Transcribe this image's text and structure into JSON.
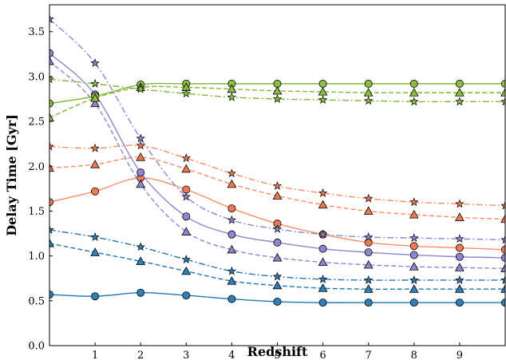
{
  "chart_data": {
    "type": "line",
    "title": "",
    "xlabel": "Redshift",
    "ylabel": "Delay Time [Gyr]",
    "xlim": [
      0,
      10
    ],
    "ylim": [
      0,
      3.8
    ],
    "xticks": [
      "1",
      "2",
      "3",
      "4",
      "5",
      "6",
      "7",
      "8",
      "9"
    ],
    "yticks": [
      "0.0",
      "0.5",
      "1.0",
      "1.5",
      "2.0",
      "2.5",
      "3.0",
      "3.5"
    ],
    "x": [
      0,
      1,
      2,
      3,
      4,
      5,
      6,
      7,
      8,
      9,
      10
    ],
    "grid": false,
    "legend": "none",
    "series": [
      {
        "color": "#1f77b4",
        "fill": "#2f7fb8",
        "marker": "circle",
        "linestyle": "solid",
        "values": [
          0.57,
          0.55,
          0.59,
          0.56,
          0.52,
          0.49,
          0.48,
          0.48,
          0.48,
          0.48,
          0.48
        ]
      },
      {
        "color": "#1f77b4",
        "fill": "#2f7fb8",
        "marker": "triangle",
        "linestyle": "dashed",
        "values": [
          1.14,
          1.04,
          0.94,
          0.83,
          0.72,
          0.67,
          0.64,
          0.63,
          0.63,
          0.63,
          0.63
        ]
      },
      {
        "color": "#1f77b4",
        "fill": "#2f7fb8",
        "marker": "star",
        "linestyle": "dashdot",
        "values": [
          1.29,
          1.21,
          1.1,
          0.96,
          0.83,
          0.77,
          0.74,
          0.73,
          0.73,
          0.73,
          0.73
        ]
      },
      {
        "color": "#fc8d62",
        "fill": "#f07a50",
        "marker": "circle",
        "linestyle": "solid",
        "values": [
          1.6,
          1.72,
          1.87,
          1.74,
          1.53,
          1.36,
          1.24,
          1.15,
          1.11,
          1.09,
          1.07
        ]
      },
      {
        "color": "#fc8d62",
        "fill": "#f07a50",
        "marker": "triangle",
        "linestyle": "dashed",
        "values": [
          1.98,
          2.02,
          2.1,
          1.97,
          1.8,
          1.67,
          1.57,
          1.5,
          1.46,
          1.43,
          1.41
        ]
      },
      {
        "color": "#fc8d62",
        "fill": "#f07a50",
        "marker": "star",
        "linestyle": "dashdot",
        "values": [
          2.22,
          2.2,
          2.23,
          2.09,
          1.92,
          1.78,
          1.7,
          1.64,
          1.6,
          1.58,
          1.56
        ]
      },
      {
        "color": "#8e86d0",
        "fill": "#8f86d1",
        "marker": "circle",
        "linestyle": "solid",
        "values": [
          3.26,
          2.8,
          1.93,
          1.44,
          1.24,
          1.15,
          1.08,
          1.04,
          1.01,
          0.99,
          0.98
        ]
      },
      {
        "color": "#8e86d0",
        "fill": "#8f86d1",
        "marker": "triangle",
        "linestyle": "dashed",
        "values": [
          3.17,
          2.7,
          1.8,
          1.27,
          1.07,
          0.98,
          0.93,
          0.9,
          0.88,
          0.87,
          0.86
        ]
      },
      {
        "color": "#8e86d0",
        "fill": "#8f86d1",
        "marker": "star",
        "linestyle": "dashdot",
        "values": [
          3.64,
          3.15,
          2.31,
          1.66,
          1.4,
          1.3,
          1.24,
          1.21,
          1.2,
          1.19,
          1.18
        ]
      },
      {
        "color": "#7fb832",
        "fill": "#8cbf3f",
        "marker": "circle",
        "linestyle": "solid",
        "values": [
          2.7,
          2.78,
          2.91,
          2.92,
          2.92,
          2.92,
          2.92,
          2.92,
          2.92,
          2.92,
          2.92
        ]
      },
      {
        "color": "#7fb832",
        "fill": "#8cbf3f",
        "marker": "triangle",
        "linestyle": "dashed",
        "values": [
          2.54,
          2.76,
          2.88,
          2.88,
          2.86,
          2.84,
          2.83,
          2.82,
          2.82,
          2.82,
          2.82
        ]
      },
      {
        "color": "#7fb832",
        "fill": "#8cbf3f",
        "marker": "star",
        "linestyle": "dashdot",
        "values": [
          2.97,
          2.92,
          2.86,
          2.81,
          2.77,
          2.75,
          2.74,
          2.73,
          2.72,
          2.72,
          2.72
        ]
      }
    ]
  }
}
